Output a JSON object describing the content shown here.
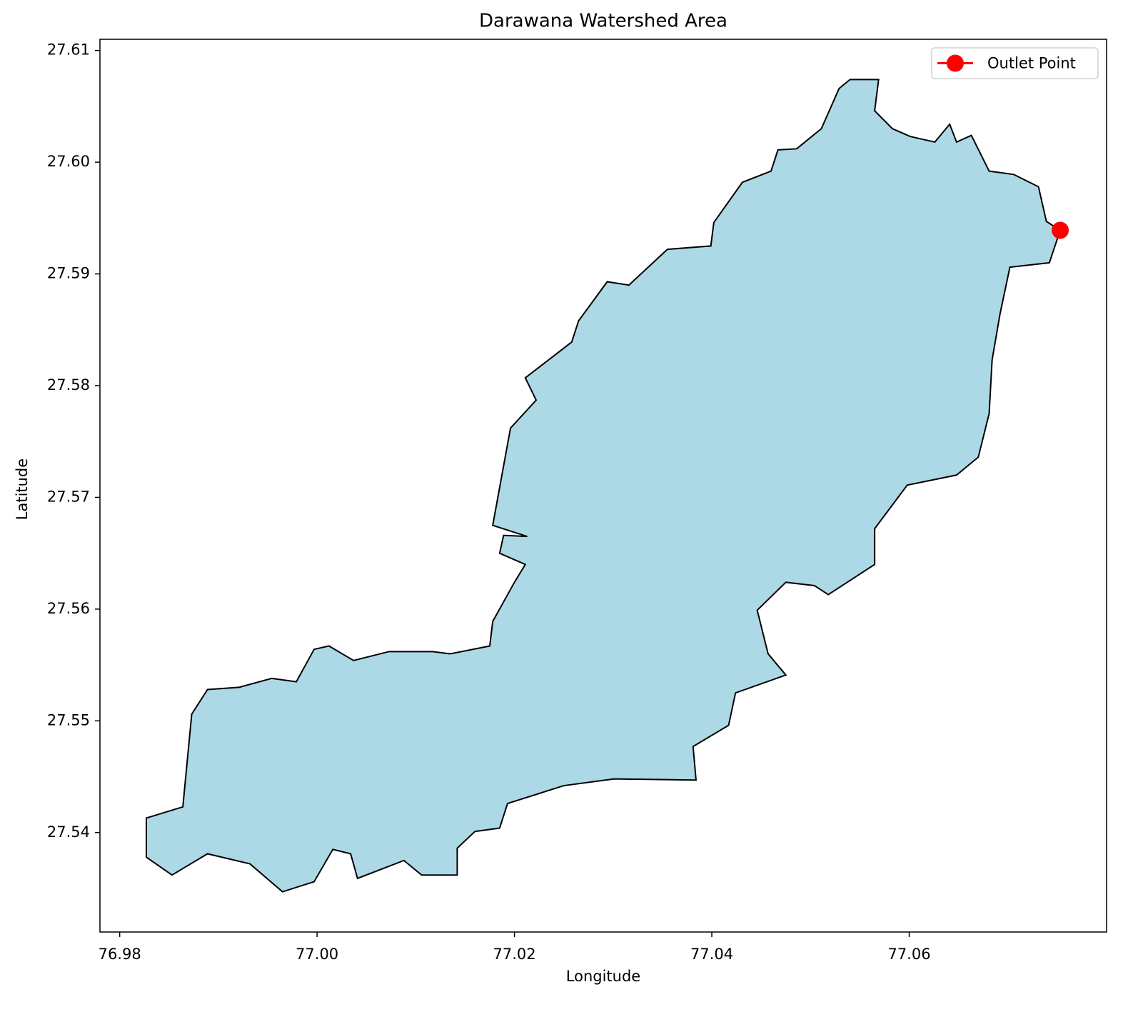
{
  "chart_data": {
    "type": "map",
    "title": "Darawana Watershed Area",
    "xlabel": "Longitude",
    "ylabel": "Latitude",
    "xlim": [
      76.978,
      77.08
    ],
    "ylim": [
      27.5311,
      27.611
    ],
    "xticks": [
      76.98,
      {
        "value": 77.0,
        "label": "77.00"
      },
      77.02,
      77.04,
      77.06
    ],
    "yticks": [
      27.61,
      {
        "value": 27.6,
        "label": "27.60"
      },
      27.59,
      27.58,
      27.57,
      27.56,
      27.55,
      27.54
    ],
    "watershed": {
      "fill": "#add8e6",
      "edgecolor": "#000000",
      "x": [
        77.054,
        77.0569,
        77.0565,
        77.0583,
        77.0601,
        77.0626,
        77.0641,
        77.0648,
        77.0663,
        77.0681,
        77.0706,
        77.0731,
        77.0739,
        77.0753,
        77.0742,
        77.0702,
        77.0692,
        77.0684,
        77.0681,
        77.067,
        77.0648,
        77.0598,
        77.0565,
        77.0565,
        77.0518,
        77.0504,
        77.0475,
        77.0446,
        77.0457,
        77.0475,
        77.0424,
        77.0417,
        77.0381,
        77.0384,
        77.0301,
        77.025,
        77.0193,
        77.0185,
        77.016,
        77.0142,
        77.0142,
        77.0106,
        77.0088,
        77.0041,
        77.0034,
        77.0016,
        76.9997,
        76.9965,
        76.9932,
        76.9889,
        76.9853,
        76.9827,
        76.9827,
        76.9864,
        76.9873,
        76.9889,
        76.9921,
        76.9954,
        76.9979,
        76.9997,
        77.0012,
        77.0037,
        77.0073,
        77.0117,
        77.0135,
        77.0175,
        77.0178,
        77.02,
        77.0211,
        77.0185,
        77.0189,
        77.0213,
        77.0178,
        77.0196,
        77.0222,
        77.0211,
        77.0258,
        77.0265,
        77.0294,
        77.0316,
        77.0355,
        77.0399,
        77.0402,
        77.0431,
        77.046,
        77.0467,
        77.0486,
        77.0511,
        77.0529
      ],
      "y": [
        27.6074,
        27.6074,
        27.6046,
        27.603,
        27.6023,
        27.6018,
        27.6034,
        27.6018,
        27.6024,
        27.5992,
        27.5989,
        27.5978,
        27.5947,
        27.5939,
        27.591,
        27.5906,
        27.5864,
        27.5823,
        27.5775,
        27.5736,
        27.572,
        27.5711,
        27.5672,
        27.564,
        27.5613,
        27.5621,
        27.5624,
        27.5599,
        27.556,
        27.5541,
        27.5525,
        27.5496,
        27.5477,
        27.5447,
        27.5448,
        27.5442,
        27.5426,
        27.5404,
        27.5401,
        27.5386,
        27.5362,
        27.5362,
        27.5375,
        27.5359,
        27.5381,
        27.5385,
        27.5356,
        27.5347,
        27.5372,
        27.5381,
        27.5362,
        27.5378,
        27.5413,
        27.5423,
        27.5506,
        27.5528,
        27.553,
        27.5538,
        27.5535,
        27.5564,
        27.5567,
        27.5554,
        27.5562,
        27.5562,
        27.556,
        27.5567,
        27.5589,
        27.5624,
        27.564,
        27.565,
        27.5666,
        27.5665,
        27.5675,
        27.5762,
        27.5787,
        27.5807,
        27.5839,
        27.5858,
        27.5893,
        27.589,
        27.5922,
        27.5925,
        27.5946,
        27.5982,
        27.5992,
        27.6011,
        27.6012,
        27.603,
        27.6066
      ]
    },
    "outlet": {
      "name": "Outlet Point",
      "color": "#ff0000",
      "x": 77.0753,
      "y": 27.5939
    },
    "legend": "upper right"
  }
}
